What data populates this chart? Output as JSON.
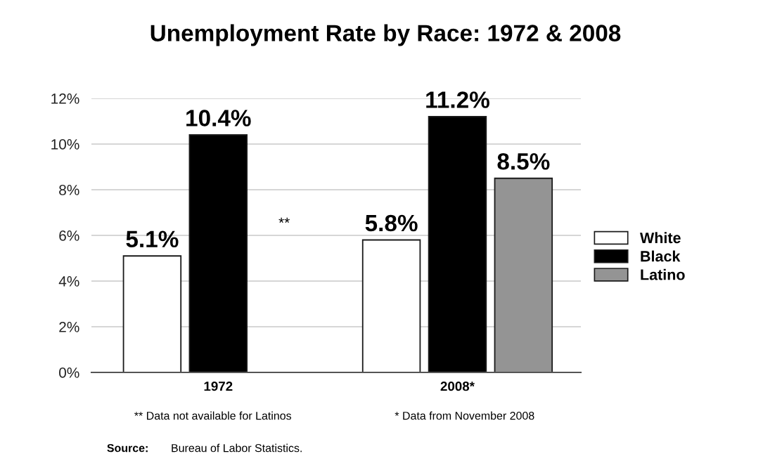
{
  "chart_data": {
    "type": "bar",
    "title": "Unemployment Rate by Race: 1972 & 2008",
    "categories": [
      "1972",
      "2008*"
    ],
    "series": [
      {
        "name": "White",
        "color": "#ffffff",
        "values": [
          5.1,
          5.8
        ],
        "value_labels": [
          "5.1%",
          "5.8%"
        ]
      },
      {
        "name": "Black",
        "color": "#000000",
        "values": [
          10.4,
          11.2
        ],
        "value_labels": [
          "10.4%",
          "11.2%"
        ]
      },
      {
        "name": "Latino",
        "color": "#949494",
        "values": [
          null,
          8.5
        ],
        "value_labels": [
          null,
          "8.5%"
        ]
      }
    ],
    "ylim": [
      0,
      12
    ],
    "yticks": [
      {
        "value": 0,
        "label": "0%"
      },
      {
        "value": 2,
        "label": "2%"
      },
      {
        "value": 4,
        "label": "4%"
      },
      {
        "value": 6,
        "label": "6%"
      },
      {
        "value": 8,
        "label": "8%"
      },
      {
        "value": 10,
        "label": "10%"
      },
      {
        "value": 12,
        "label": "12%"
      }
    ],
    "grid": "y",
    "legend": "right",
    "annotations": [
      "**",
      "** Data not available for Latinos",
      "* Data from November 2008",
      "Source:",
      "Bureau of Labor Statistics."
    ]
  }
}
